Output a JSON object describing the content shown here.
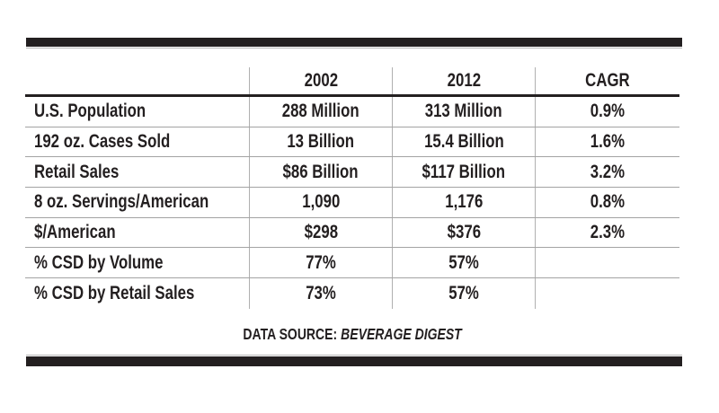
{
  "chart_data": {
    "type": "table",
    "columns": [
      "",
      "2002",
      "2012",
      "CAGR"
    ],
    "rows": [
      {
        "label": "U.S. Population",
        "v2002": "288 Million",
        "v2012": "313 Million",
        "cagr": "0.9%"
      },
      {
        "label": "192 oz. Cases Sold",
        "v2002": "13 Billion",
        "v2012": "15.4 Billion",
        "cagr": "1.6%"
      },
      {
        "label": "Retail Sales",
        "v2002": "$86 Billion",
        "v2012": "$117 Billion",
        "cagr": "3.2%"
      },
      {
        "label": "8 oz. Servings/American",
        "v2002": "1,090",
        "v2012": "1,176",
        "cagr": "0.8%"
      },
      {
        "label": "$/American",
        "v2002": "$298",
        "v2012": "$376",
        "cagr": "2.3%"
      },
      {
        "label": "% CSD by Volume",
        "v2002": "77%",
        "v2012": "57%",
        "cagr": ""
      },
      {
        "label": "% CSD by Retail Sales",
        "v2002": "73%",
        "v2012": "57%",
        "cagr": ""
      }
    ],
    "source_label": "DATA SOURCE:",
    "source_name": "BEVERAGE DIGEST",
    "layout": "grid-on, heavy black rules top and bottom, no outer side borders",
    "colors": {
      "text": "#231f20",
      "heavy_rule": "#231f20",
      "grid_line": "#a9a9a9",
      "hairline": "#b5b5b5"
    }
  }
}
